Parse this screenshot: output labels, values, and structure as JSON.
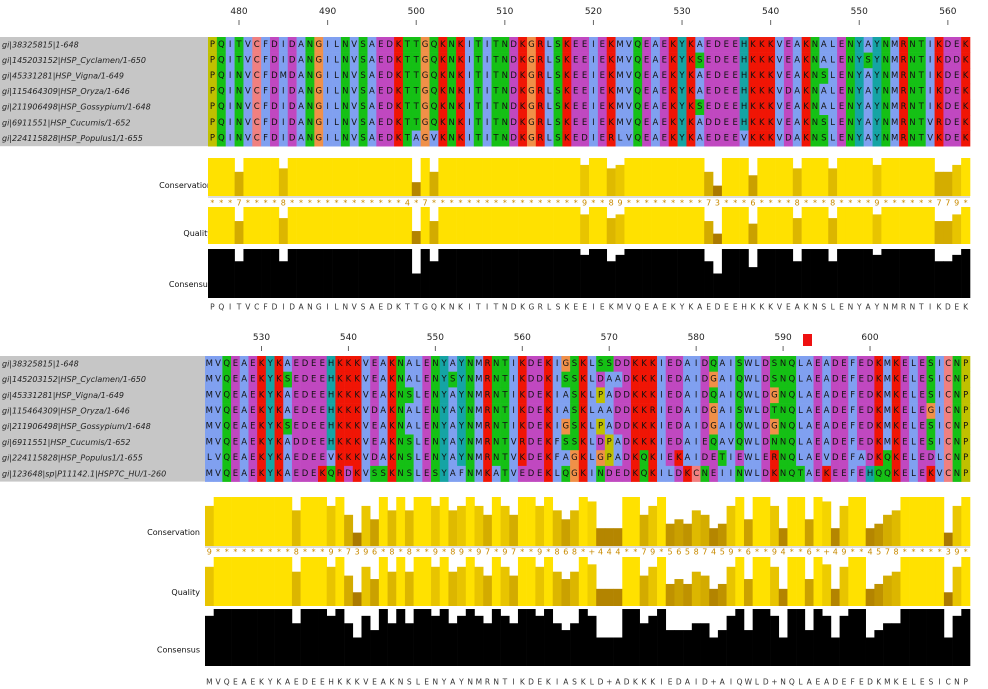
{
  "panels": [
    {
      "ruler": {
        "start": 477,
        "ticks": [
          480,
          490,
          500,
          510,
          520,
          530,
          540,
          550,
          560
        ]
      },
      "sequences": [
        {
          "name": "gi|38325815|1-648",
          "sequence": "PQITVCFDIDANGILNVSAEDKTTGQKNKITITNDKGRLSKEEIEKMVQEAEKYKAEDEEHKKKVEAKNALENYAYNMRNTIKDEK"
        },
        {
          "name": "gi|145203152|HSP_Cyclamen/1-650",
          "sequence": "PQITVCFDIDANGILNVSAEDKTTGQKNKITITNDKGRLSKEEIEKMVQEAEKYKSEDEEHKKKVEAKNALENYSYNMRNTIKDDK"
        },
        {
          "name": "gi|45331281|HSP_Vigna/1-649",
          "sequence": "PQINVCFDMDANGILNVSAEDKTTGQKNKITITNDKGRLSKEEIEKMVQEAEKYKAEDEEHKKKVEAKNSLENYAYNMRNTIKDEK"
        },
        {
          "name": "gi|115464309|HSP_Oryza/1-646",
          "sequence": "PQINVCFDIDANGILNVSAEDKTTGQKNKITITNDKGRLSKEEIEKMVQEAEKYKAEDEEHKKKVDAKNALENYAYNMRNTIKDEK"
        },
        {
          "name": "gi|211906498|HSP_Gossypium/1-648",
          "sequence": "PQINVCFDIDANGILNVSAEDKTTGQKNKITITNDKGRLSKEEIEKMVQEAEKYKSEDEEHKKKVEAKNALENYAYNMRNTIKDEK"
        },
        {
          "name": "gi|6911551|HSP_Cucumis/1-652",
          "sequence": "PQINVCFDIDANGILNVSAEDKTTGQKNKITITNDKGRLSKEEIEKMVQEAEKYKADDEEHKKKVEAKNSLENYAYNMRNTVRDEK"
        },
        {
          "name": "gi|224115828|HSP_Populus1/1-655",
          "sequence": "PQINVCFDIDANGILNVSAEDKTAGVKNKITITNDKGRLSKEDIERLVQEAEKYKAEDEEVKKKVDAKNSLENYAYNMRNTVKDEK"
        }
      ],
      "annotations": {
        "conservation_label": "Conservation",
        "conservation": [
          11,
          11,
          11,
          7,
          11,
          11,
          11,
          11,
          8,
          11,
          11,
          11,
          11,
          11,
          11,
          11,
          11,
          11,
          11,
          11,
          11,
          11,
          11,
          4,
          11,
          7,
          11,
          11,
          11,
          11,
          11,
          11,
          11,
          11,
          11,
          11,
          11,
          11,
          11,
          11,
          11,
          11,
          9,
          11,
          11,
          8,
          9,
          11,
          11,
          11,
          11,
          11,
          11,
          11,
          11,
          11,
          7,
          3,
          11,
          11,
          11,
          6,
          11,
          11,
          11,
          11,
          8,
          11,
          11,
          11,
          8,
          11,
          11,
          11,
          11,
          9,
          11,
          11,
          11,
          11,
          11,
          11,
          7,
          7,
          9,
          11
        ],
        "conservation_symbols": "***7****8*************4*7*****************9**89*********73***6****8***8****9******779*",
        "quality_label": "Quality",
        "quality": [
          100,
          100,
          100,
          62,
          100,
          100,
          100,
          100,
          70,
          100,
          100,
          100,
          100,
          100,
          100,
          100,
          100,
          100,
          100,
          100,
          100,
          100,
          100,
          35,
          100,
          62,
          100,
          100,
          100,
          100,
          100,
          100,
          100,
          100,
          100,
          100,
          100,
          100,
          100,
          100,
          100,
          100,
          80,
          100,
          100,
          70,
          80,
          100,
          100,
          100,
          100,
          100,
          100,
          100,
          100,
          100,
          62,
          28,
          100,
          100,
          100,
          55,
          100,
          100,
          100,
          100,
          70,
          100,
          100,
          100,
          70,
          100,
          100,
          100,
          100,
          80,
          100,
          100,
          100,
          100,
          100,
          100,
          62,
          62,
          80,
          100
        ],
        "consensus_label": "Consensus",
        "consensus": [
          100,
          100,
          100,
          75,
          100,
          100,
          100,
          100,
          75,
          100,
          100,
          100,
          100,
          100,
          100,
          100,
          100,
          100,
          100,
          100,
          100,
          100,
          100,
          50,
          100,
          75,
          100,
          100,
          100,
          100,
          100,
          100,
          100,
          100,
          100,
          100,
          100,
          100,
          100,
          100,
          100,
          100,
          88,
          100,
          100,
          75,
          88,
          100,
          100,
          100,
          100,
          100,
          100,
          100,
          100,
          100,
          75,
          50,
          100,
          100,
          100,
          63,
          100,
          100,
          100,
          100,
          75,
          100,
          100,
          100,
          75,
          100,
          100,
          100,
          100,
          88,
          100,
          100,
          100,
          100,
          100,
          100,
          75,
          75,
          88,
          100
        ],
        "consensus_sequence": "PQITVCFDIDANGILNVSAEDKTTGQKNKITITNDKGRLSKEEIEKMVQEAEKYKAEDEEHKKKVEAKNSLENYAYNMRNTIKDEK"
      }
    },
    {
      "ruler": {
        "start": 524,
        "ticks": [
          530,
          540,
          550,
          560,
          570,
          580,
          590,
          600
        ]
      },
      "sequences": [
        {
          "name": "gi|38325815|1-648",
          "sequence": "MVQEAEKYKAEDEEHKKKVEAKNALENYAYNMRNTIKDEKIGSKLSSDDKKKIEDAIDQAISWLDSNQLAEADEFEDKMKELESICNP"
        },
        {
          "name": "gi|145203152|HSP_Cyclamen/1-650",
          "sequence": "MVQEAEKYKSEDEEHKKKVEAKNALENYSYNMRNTIKDDKISSKLDAADKKKIEDAIDGAIQWLDSNQLAEADEFEDKMKELESICNP"
        },
        {
          "name": "gi|45331281|HSP_Vigna/1-649",
          "sequence": "MVQEAEKYKAEDEEHKKKVEAKNSLENYAYNMRNTIKDEKIASKLPADDKKKIEDAIDQAIQWLDGNQLAEADEFEDKMKELESICNP"
        },
        {
          "name": "gi|115464309|HSP_Oryza/1-646",
          "sequence": "MVQEAEKYKAEDEEHKKKVDAKNALENYAYNMRNTIKDEKIASKLAADDKKRIEDAIDGAISWLDTNQLAEADEFEDKMKELEGICNP"
        },
        {
          "name": "gi|211906498|HSP_Gossypium/1-648",
          "sequence": "MVQEAEKYKSEDEEHKKKVEAKNALENYAYNMRNTIKDEKIGSKLPADDKKKIEDAIDGAIQWLDGNQLAEADEFEDKMKELESICNP"
        },
        {
          "name": "gi|6911551|HSP_Cucumis/1-652",
          "sequence": "MVQEAEKYKADDEEHKKKVEAKNSLENYAYNMRNTVRDEKFSSKLDPADKKKIEDAIEQAVQWLDNNQLAEADEFEDKMKELESICNP"
        },
        {
          "name": "gi|224115828|HSP_Populus1/1-655",
          "sequence": "LVQEAEKYKAEDEEVKKKVDAKNSLENYAYNMRNTVKDEKFAGKLGPADKQKIEKAIDETIEWLERNQLAEVDEFADKQKELEDLCNP"
        },
        {
          "name": "gi|123648|sp|P11142.1|HSP7C_HU/1-260",
          "sequence": "MVQEAEKYKAEDEKQRDKVSSKNSLESYAFNMKATVEDEKLQGKINDEDKQKILDKCNEIINWLDKNQTAEKEEFEHQQKELEKVCNP"
        }
      ],
      "annotations": {
        "conservation_label": "Conservation",
        "conservation": [
          9,
          11,
          11,
          11,
          11,
          11,
          11,
          11,
          11,
          11,
          8,
          11,
          11,
          11,
          9,
          11,
          7,
          3,
          9,
          6,
          11,
          8,
          11,
          8,
          11,
          11,
          9,
          11,
          8,
          9,
          11,
          9,
          7,
          11,
          9,
          7,
          11,
          11,
          9,
          11,
          8,
          6,
          8,
          11,
          10,
          4,
          4,
          4,
          11,
          11,
          7,
          9,
          11,
          5,
          6,
          5,
          8,
          7,
          4,
          5,
          9,
          11,
          6,
          11,
          11,
          9,
          4,
          11,
          11,
          6,
          11,
          10,
          4,
          9,
          11,
          11,
          4,
          5,
          7,
          8,
          11,
          11,
          11,
          11,
          11,
          3,
          9,
          11
        ],
        "conservation_symbols": "9*********8***9*7396*8*8**9*89*97*97**9*868*+444**79*56587459*6**94**6*+49**4578*****39*",
        "quality_label": "Quality",
        "quality": [
          80,
          100,
          100,
          100,
          100,
          100,
          100,
          100,
          100,
          100,
          70,
          100,
          100,
          100,
          80,
          100,
          62,
          28,
          80,
          55,
          100,
          70,
          100,
          70,
          100,
          100,
          80,
          100,
          70,
          80,
          100,
          80,
          62,
          100,
          80,
          62,
          100,
          100,
          80,
          100,
          70,
          55,
          70,
          100,
          85,
          35,
          35,
          35,
          100,
          100,
          62,
          80,
          100,
          45,
          55,
          45,
          70,
          62,
          35,
          45,
          80,
          100,
          55,
          100,
          100,
          80,
          35,
          100,
          100,
          55,
          100,
          85,
          35,
          80,
          100,
          100,
          35,
          45,
          62,
          70,
          100,
          100,
          100,
          100,
          100,
          28,
          80,
          100
        ],
        "consensus_label": "Consensus",
        "consensus": [
          88,
          100,
          100,
          100,
          100,
          100,
          100,
          100,
          100,
          100,
          75,
          100,
          100,
          100,
          88,
          100,
          75,
          50,
          88,
          63,
          100,
          75,
          100,
          75,
          100,
          100,
          88,
          100,
          75,
          88,
          100,
          88,
          75,
          100,
          88,
          75,
          100,
          100,
          88,
          100,
          75,
          63,
          75,
          100,
          88,
          50,
          50,
          50,
          100,
          100,
          75,
          88,
          100,
          63,
          63,
          63,
          75,
          75,
          50,
          63,
          88,
          100,
          63,
          100,
          100,
          88,
          50,
          100,
          100,
          63,
          100,
          88,
          50,
          88,
          100,
          100,
          50,
          63,
          75,
          75,
          100,
          100,
          100,
          100,
          100,
          50,
          88,
          100
        ],
        "consensus_sequence": "MVQEAEKYKAEDEEHKKKVEAKNSLENYAYNMRNTIKDEKIASKLD+ADKKKIEDAID+AIQWLD+NQLAEADEFEDKMKELESICNP"
      }
    }
  ],
  "ranges": {
    "conservation": [
      0,
      11
    ],
    "quality": [
      0,
      100
    ],
    "consensus": [
      0,
      100
    ]
  },
  "residue_colors": {
    "A": "#80a0f0",
    "I": "#80a0f0",
    "L": "#80a0f0",
    "M": "#80a0f0",
    "F": "#80a0f0",
    "W": "#80a0f0",
    "V": "#80a0f0",
    "K": "#f01505",
    "R": "#f01505",
    "E": "#c048c0",
    "D": "#c048c0",
    "N": "#15c015",
    "Q": "#15c015",
    "S": "#15c015",
    "T": "#15c015",
    "C": "#f08080",
    "G": "#f09048",
    "P": "#c0c000",
    "H": "#15a4a4",
    "Y": "#15a4a4"
  },
  "bar_colors": {
    "low": "#8a5200",
    "high": "#ffe100",
    "consensus": "#000000"
  }
}
